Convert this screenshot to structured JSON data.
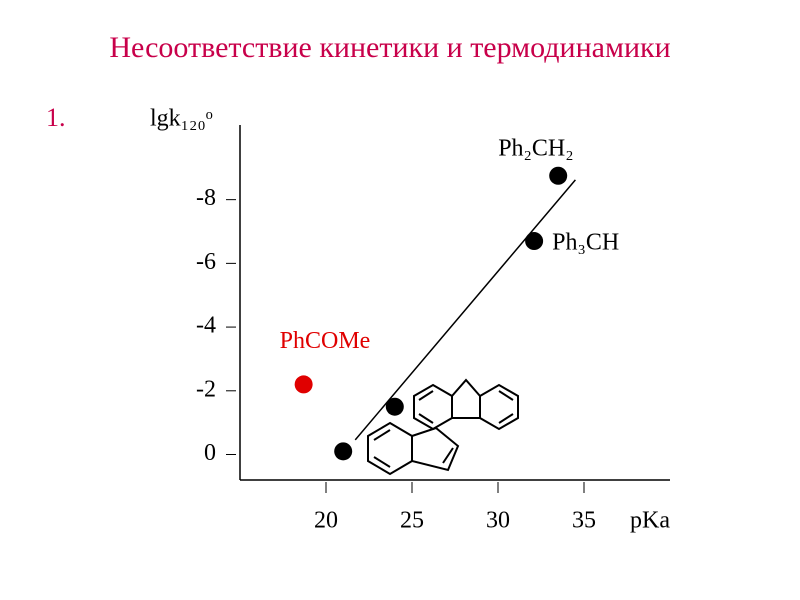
{
  "chart_data": {
    "type": "scatter",
    "title": "Несоответствие кинетики и термодинамики",
    "item_number": "1.",
    "y_label": "lgk₁₂₀ᵒ",
    "x_label": "pKa",
    "x": [
      21.0,
      24.0,
      18.7,
      32.1,
      33.5
    ],
    "values": [
      -0.1,
      -1.5,
      -2.2,
      -6.7,
      -8.75
    ],
    "point_labels": [
      null,
      null,
      "PhCOMe",
      "Ph₃CH",
      "Ph₂CH₂"
    ],
    "colors": [
      "#000000",
      "#000000",
      "#e00000",
      "#000000",
      "#000000"
    ],
    "label_colors": [
      "#000000",
      "#000000",
      "#e00000",
      "#000000",
      "#000000"
    ],
    "fit_line": {
      "x": [
        21.7,
        34.5
      ],
      "values": [
        -0.46,
        -8.62
      ]
    },
    "xlim": [
      15,
      40
    ],
    "ylim": [
      0.8,
      -10.5
    ],
    "xticks": [
      20,
      25,
      30,
      35
    ],
    "yticks": [
      0,
      -2,
      -4,
      -6,
      -8
    ]
  }
}
